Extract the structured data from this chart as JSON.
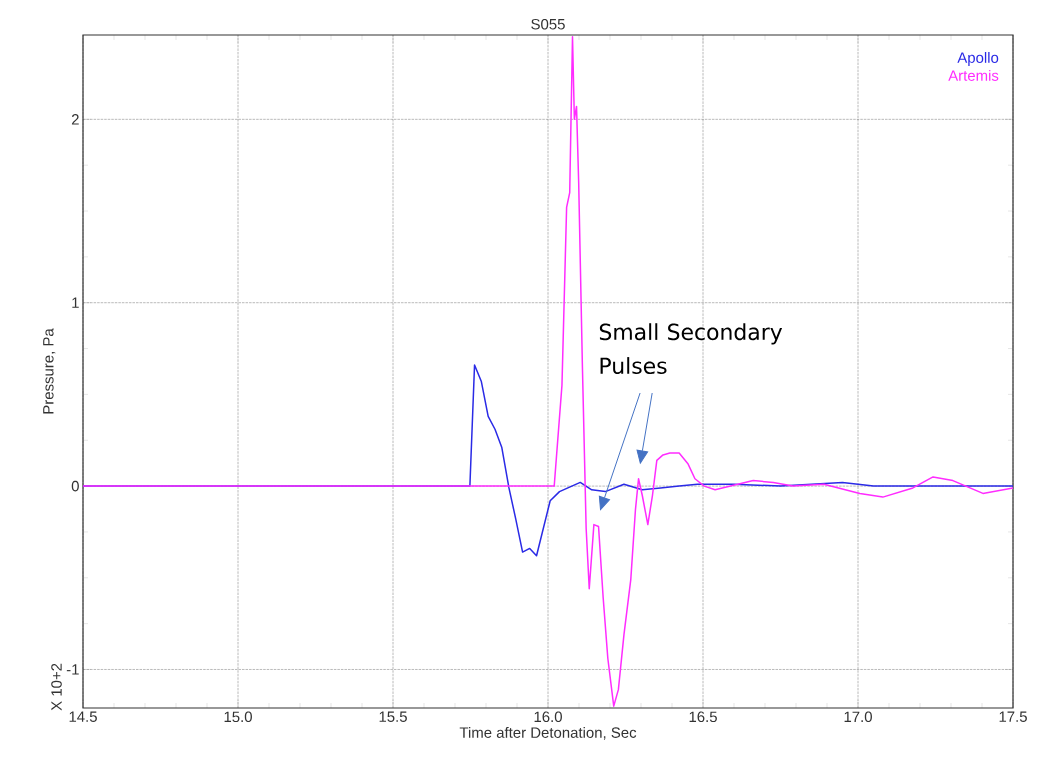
{
  "chart_data": {
    "type": "line",
    "title": "S055",
    "xlabel": "Time after Detonation, Sec",
    "ylabel": "Pressure, Pa",
    "xlim": [
      14.5,
      17.5
    ],
    "ylim": [
      -1.21,
      2.46
    ],
    "xticks": [
      14.5,
      {
        "value": 15,
        "label": "15.0"
      },
      15.5,
      {
        "value": 16,
        "label": "16.0"
      },
      16.5,
      {
        "value": 17,
        "label": "17.0"
      },
      17.5
    ],
    "yticks": [
      -1,
      0,
      1,
      2
    ],
    "grid": true,
    "legend": "top right",
    "marker": "none",
    "line_style": "solid",
    "annotations": [
      "X 10+2",
      "Small Secondary Pulses"
    ],
    "series": [
      {
        "name": "Apollo",
        "color": "#2a2ae6",
        "x": [
          14.5,
          15.748,
          15.763,
          15.785,
          15.807,
          15.829,
          15.851,
          15.874,
          15.896,
          15.918,
          15.941,
          15.963,
          15.985,
          16.007,
          16.037,
          16.104,
          16.141,
          16.185,
          16.245,
          16.304,
          16.363,
          16.423,
          16.482,
          16.6,
          16.75,
          16.95,
          17.05,
          17.2,
          17.35,
          17.5
        ],
        "values": [
          0,
          0,
          0.66,
          0.57,
          0.38,
          0.31,
          0.21,
          -0.01,
          -0.18,
          -0.36,
          -0.34,
          -0.38,
          -0.23,
          -0.08,
          -0.03,
          0.02,
          -0.02,
          -0.03,
          0.01,
          -0.02,
          -0.01,
          0,
          0.01,
          0.01,
          0,
          0.02,
          0,
          0,
          0,
          0
        ]
      },
      {
        "name": "Artemis",
        "color": "#ff2cff",
        "x": [
          14.5,
          16.02,
          16.045,
          16.06,
          16.07,
          16.079,
          16.085,
          16.092,
          16.099,
          16.111,
          16.123,
          16.133,
          16.148,
          16.163,
          16.178,
          16.193,
          16.212,
          16.227,
          16.245,
          16.267,
          16.282,
          16.292,
          16.304,
          16.322,
          16.337,
          16.351,
          16.371,
          16.393,
          16.423,
          16.452,
          16.474,
          16.504,
          16.539,
          16.662,
          16.727,
          16.79,
          16.89,
          17.006,
          17.08,
          17.177,
          17.242,
          17.306,
          17.403,
          17.5
        ],
        "values": [
          0,
          0,
          0.55,
          1.52,
          1.6,
          2.45,
          2.0,
          2.07,
          1.65,
          0.65,
          -0.23,
          -0.56,
          -0.21,
          -0.22,
          -0.61,
          -0.94,
          -1.2,
          -1.11,
          -0.81,
          -0.51,
          -0.13,
          0.04,
          -0.05,
          -0.21,
          -0.05,
          0.14,
          0.17,
          0.18,
          0.18,
          0.12,
          0.04,
          0,
          -0.02,
          0.03,
          0.02,
          0,
          0.01,
          -0.04,
          -0.06,
          -0.01,
          0.05,
          0.03,
          -0.04,
          -0.01
        ]
      }
    ]
  }
}
